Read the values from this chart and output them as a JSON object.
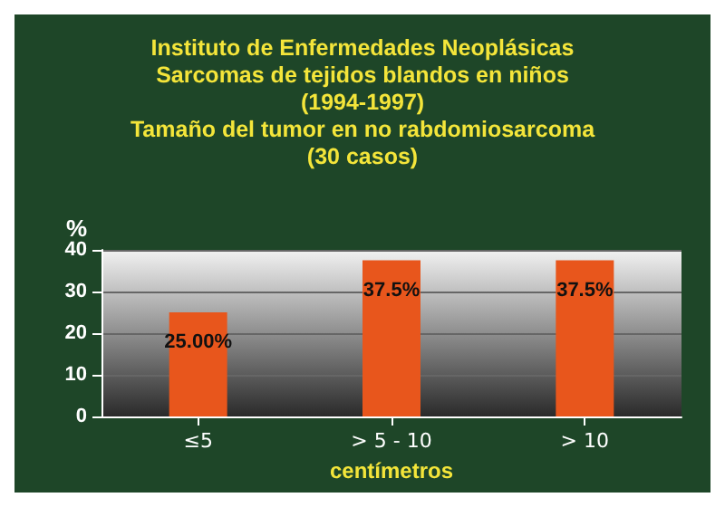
{
  "chart_data": {
    "type": "bar",
    "title": "Instituto de Enfermedades Neoplásicas\nSarcomas de tejidos blandos en niños\n(1994-1997)\nTamaño del tumor en no rabdomiosarcoma\n(30 casos)",
    "ylabel": "%",
    "xlabel": "centímetros",
    "categories": [
      "≤5",
      "> 5 - 10",
      "> 10"
    ],
    "values": [
      25,
      37.5,
      37.5
    ],
    "value_labels": [
      "25.00%",
      "37.5%",
      "37.5%"
    ],
    "color": "#e8561c",
    "ylim": [
      0,
      40
    ],
    "yticks": [
      0,
      10,
      20,
      30,
      40
    ],
    "grid": "y"
  }
}
